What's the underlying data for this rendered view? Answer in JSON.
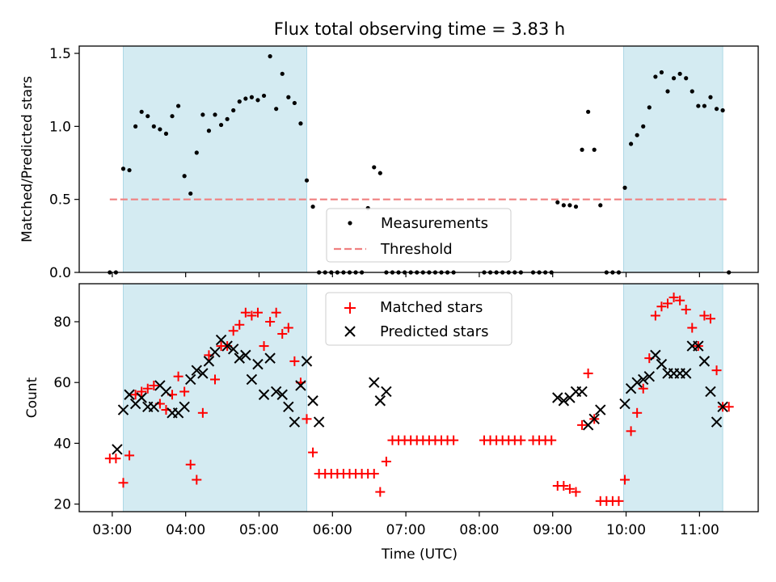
{
  "figure": {
    "title": "Flux total observing time = 3.83 h"
  },
  "chart_data": [
    {
      "type": "scatter",
      "panel": "top",
      "ylabel": "Matched/Predicted stars",
      "xlabel": "",
      "xlim": [
        "02:33",
        "11:48"
      ],
      "ylim": [
        0.0,
        1.55
      ],
      "yticks": [
        0.0,
        0.5,
        1.0,
        1.5
      ],
      "ytick_labels": [
        "0.0",
        "0.5",
        "1.0",
        "1.5"
      ],
      "shaded_intervals": [
        [
          "03:09",
          "05:39"
        ],
        [
          "09:58",
          "11:19"
        ]
      ],
      "threshold": {
        "name": "Threshold",
        "value": 0.5,
        "x_range": [
          "02:58",
          "11:23"
        ],
        "color": "#f08080"
      },
      "legend": {
        "placement": "bottom-center"
      },
      "series": [
        {
          "name": "Measurements",
          "marker": "dot",
          "color": "#000000",
          "x": [
            "02:58",
            "03:03",
            "03:09",
            "03:14",
            "03:19",
            "03:24",
            "03:29",
            "03:34",
            "03:39",
            "03:44",
            "03:49",
            "03:54",
            "03:59",
            "04:04",
            "04:09",
            "04:14",
            "04:19",
            "04:24",
            "04:29",
            "04:34",
            "04:39",
            "04:44",
            "04:49",
            "04:54",
            "04:59",
            "05:04",
            "05:09",
            "05:14",
            "05:19",
            "05:24",
            "05:29",
            "05:34",
            "05:39",
            "05:44",
            "05:49",
            "05:54",
            "05:59",
            "06:04",
            "06:09",
            "06:14",
            "06:19",
            "06:24",
            "06:29",
            "06:34",
            "06:39",
            "06:44",
            "06:49",
            "06:54",
            "06:59",
            "07:04",
            "07:09",
            "07:14",
            "07:19",
            "07:24",
            "07:29",
            "07:34",
            "07:39",
            "08:04",
            "08:09",
            "08:14",
            "08:19",
            "08:24",
            "08:29",
            "08:34",
            "08:44",
            "08:49",
            "08:54",
            "08:59",
            "09:04",
            "09:09",
            "09:14",
            "09:19",
            "09:24",
            "09:29",
            "09:34",
            "09:39",
            "09:44",
            "09:49",
            "09:54",
            "09:59",
            "10:04",
            "10:09",
            "10:14",
            "10:19",
            "10:24",
            "10:29",
            "10:34",
            "10:39",
            "10:44",
            "10:49",
            "10:54",
            "10:59",
            "11:04",
            "11:09",
            "11:14",
            "11:19",
            "11:24"
          ],
          "y": [
            0.0,
            0.0,
            0.71,
            0.7,
            1.0,
            1.1,
            1.07,
            1.0,
            0.98,
            0.95,
            1.07,
            1.14,
            0.66,
            0.54,
            0.82,
            1.08,
            0.97,
            1.08,
            1.01,
            1.05,
            1.11,
            1.17,
            1.19,
            1.2,
            1.18,
            1.21,
            1.48,
            1.12,
            1.36,
            1.2,
            1.16,
            1.02,
            0.63,
            0.45,
            0.0,
            0.0,
            0.0,
            0.0,
            0.0,
            0.0,
            0.0,
            0.0,
            0.44,
            0.72,
            0.68,
            0.0,
            0.0,
            0.0,
            0.0,
            0.0,
            0.0,
            0.0,
            0.0,
            0.0,
            0.0,
            0.0,
            0.0,
            0.0,
            0.0,
            0.0,
            0.0,
            0.0,
            0.0,
            0.0,
            0.0,
            0.0,
            0.0,
            0.0,
            0.48,
            0.46,
            0.46,
            0.45,
            0.84,
            1.1,
            0.84,
            0.46,
            0.0,
            0.0,
            0.0,
            0.58,
            0.88,
            0.94,
            1.0,
            1.13,
            1.34,
            1.37,
            1.24,
            1.33,
            1.36,
            1.33,
            1.24,
            1.14,
            1.14,
            1.2,
            1.12,
            1.11,
            0.0
          ]
        }
      ]
    },
    {
      "type": "scatter",
      "panel": "bottom",
      "xlabel": "Time (UTC)",
      "ylabel": "Count",
      "xlim": [
        "02:33",
        "11:48"
      ],
      "ylim": [
        17.5,
        92.5
      ],
      "yticks": [
        20,
        40,
        60,
        80
      ],
      "ytick_labels": [
        "20",
        "40",
        "60",
        "80"
      ],
      "xticks": [
        "03:00",
        "04:00",
        "05:00",
        "06:00",
        "07:00",
        "08:00",
        "09:00",
        "10:00",
        "11:00"
      ],
      "shaded_intervals": [
        [
          "03:09",
          "05:39"
        ],
        [
          "09:58",
          "11:19"
        ]
      ],
      "legend": {
        "placement": "top-center"
      },
      "series": [
        {
          "name": "Matched stars",
          "marker": "plus",
          "color": "#ff0000",
          "x": [
            "02:58",
            "03:03",
            "03:09",
            "03:14",
            "03:19",
            "03:24",
            "03:29",
            "03:34",
            "03:39",
            "03:44",
            "03:49",
            "03:54",
            "03:59",
            "04:04",
            "04:09",
            "04:14",
            "04:19",
            "04:24",
            "04:29",
            "04:34",
            "04:39",
            "04:44",
            "04:49",
            "04:54",
            "04:59",
            "05:04",
            "05:09",
            "05:14",
            "05:19",
            "05:24",
            "05:29",
            "05:34",
            "05:39",
            "05:44",
            "05:49",
            "05:54",
            "05:59",
            "06:04",
            "06:09",
            "06:14",
            "06:19",
            "06:24",
            "06:29",
            "06:34",
            "06:39",
            "06:44",
            "06:49",
            "06:54",
            "06:59",
            "07:04",
            "07:09",
            "07:14",
            "07:19",
            "07:24",
            "07:29",
            "07:34",
            "07:39",
            "08:04",
            "08:09",
            "08:14",
            "08:19",
            "08:24",
            "08:29",
            "08:34",
            "08:44",
            "08:49",
            "08:54",
            "08:59",
            "09:04",
            "09:09",
            "09:14",
            "09:19",
            "09:24",
            "09:29",
            "09:34",
            "09:39",
            "09:44",
            "09:49",
            "09:54",
            "09:59",
            "10:04",
            "10:09",
            "10:14",
            "10:19",
            "10:24",
            "10:29",
            "10:34",
            "10:39",
            "10:44",
            "10:49",
            "10:54",
            "10:59",
            "11:04",
            "11:09",
            "11:14",
            "11:19",
            "11:24"
          ],
          "y": [
            35,
            35,
            27,
            36,
            56,
            57,
            58,
            59,
            53,
            51,
            56,
            62,
            57,
            33,
            28,
            50,
            69,
            61,
            72,
            72,
            77,
            79,
            83,
            82,
            83,
            72,
            80,
            83,
            76,
            78,
            67,
            60,
            48,
            37,
            30,
            30,
            30,
            30,
            30,
            30,
            30,
            30,
            30,
            30,
            24,
            34,
            41,
            41,
            41,
            41,
            41,
            41,
            41,
            41,
            41,
            41,
            41,
            41,
            41,
            41,
            41,
            41,
            41,
            41,
            41,
            41,
            41,
            41,
            26,
            26,
            25,
            24,
            46,
            63,
            48,
            21,
            21,
            21,
            21,
            28,
            44,
            50,
            58,
            68,
            82,
            85,
            86,
            88,
            87,
            84,
            78,
            72,
            82,
            81,
            64,
            52,
            52
          ]
        },
        {
          "name": "Predicted stars",
          "marker": "x",
          "color": "#000000",
          "x": [
            "03:04",
            "03:09",
            "03:14",
            "03:19",
            "03:24",
            "03:29",
            "03:34",
            "03:39",
            "03:44",
            "03:49",
            "03:54",
            "03:59",
            "04:04",
            "04:09",
            "04:14",
            "04:19",
            "04:24",
            "04:29",
            "04:34",
            "04:39",
            "04:44",
            "04:49",
            "04:54",
            "04:59",
            "05:04",
            "05:09",
            "05:14",
            "05:19",
            "05:24",
            "05:29",
            "05:34",
            "05:39",
            "05:44",
            "05:49",
            "06:34",
            "06:39",
            "06:44",
            "09:04",
            "09:09",
            "09:14",
            "09:19",
            "09:24",
            "09:29",
            "09:34",
            "09:39",
            "09:59",
            "10:04",
            "10:09",
            "10:14",
            "10:19",
            "10:24",
            "10:29",
            "10:34",
            "10:39",
            "10:44",
            "10:49",
            "10:54",
            "10:59",
            "11:04",
            "11:09",
            "11:14",
            "11:19"
          ],
          "y": [
            38,
            51,
            56,
            53,
            55,
            52,
            52,
            59,
            57,
            50,
            50,
            52,
            61,
            64,
            63,
            67,
            70,
            74,
            72,
            71,
            68,
            69,
            61,
            66,
            56,
            68,
            57,
            56,
            52,
            47,
            59,
            67,
            54,
            47,
            60,
            54,
            57,
            55,
            54,
            55,
            57,
            57,
            46,
            48,
            51,
            53,
            58,
            60,
            61,
            62,
            69,
            66,
            63,
            63,
            63,
            63,
            72,
            72,
            67,
            57,
            47,
            52
          ]
        }
      ]
    }
  ]
}
